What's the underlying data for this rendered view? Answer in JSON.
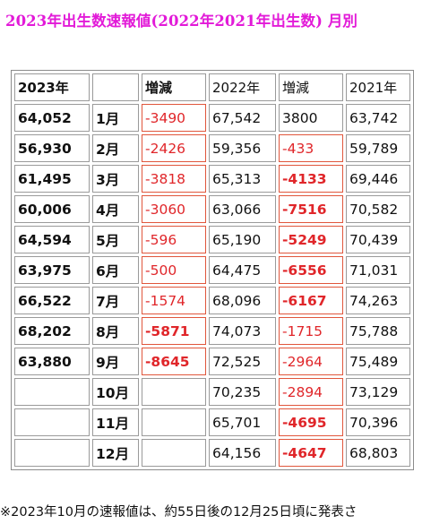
{
  "title": "2023年出生数速報値(2022年2021年出生数) 月別",
  "table": {
    "header": [
      "2023年",
      "",
      "増減",
      "2022年",
      "増減",
      "2021年"
    ],
    "rows": [
      [
        "64,052",
        "1月",
        "-3490",
        "67,542",
        "3800",
        "63,742"
      ],
      [
        "56,930",
        "2月",
        "-2426",
        "59,356",
        "-433",
        "59,789"
      ],
      [
        "61,495",
        "3月",
        "-3818",
        "65,313",
        "-4133",
        "69,446"
      ],
      [
        "60,006",
        "4月",
        "-3060",
        "63,066",
        "-7516",
        "70,582"
      ],
      [
        "64,594",
        "5月",
        "-596",
        "65,190",
        "-5249",
        "70,439"
      ],
      [
        "63,975",
        "6月",
        "-500",
        "64,475",
        "-6556",
        "71,031"
      ],
      [
        "66,522",
        "7月",
        "-1574",
        "68,096",
        "-6167",
        "74,263"
      ],
      [
        "68,202",
        "8月",
        "-5871",
        "74,073",
        "-1715",
        "75,788"
      ],
      [
        "63,880",
        "9月",
        "-8645",
        "72,525",
        "-2964",
        "75,489"
      ],
      [
        "",
        "10月",
        "",
        "70,235",
        "-2894",
        "73,129"
      ],
      [
        "",
        "11月",
        "",
        "65,701",
        "-4695",
        "70,396"
      ],
      [
        "",
        "12月",
        "",
        "64,156",
        "-4647",
        "68,803"
      ]
    ]
  },
  "footnote": "※2023年10月の速報値は、約55日後の12月25日頃に発表さ",
  "colors": {
    "title": "#e21ad8",
    "negative": "#e0262a",
    "highlight_border": "#e0563c"
  }
}
